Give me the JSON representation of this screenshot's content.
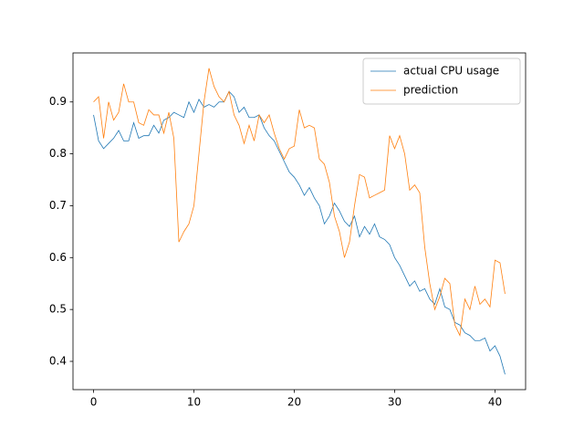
{
  "chart_data": {
    "type": "line",
    "x": [
      0,
      0.5,
      1,
      1.5,
      2,
      2.5,
      3,
      3.5,
      4,
      4.5,
      5,
      5.5,
      6,
      6.5,
      7,
      7.5,
      8,
      8.5,
      9,
      9.5,
      10,
      10.5,
      11,
      11.5,
      12,
      12.5,
      13,
      13.5,
      14,
      14.5,
      15,
      15.5,
      16,
      16.5,
      17,
      17.5,
      18,
      18.5,
      19,
      19.5,
      20,
      20.5,
      21,
      21.5,
      22,
      22.5,
      23,
      23.5,
      24,
      24.5,
      25,
      25.5,
      26,
      26.5,
      27,
      27.5,
      28,
      28.5,
      29,
      29.5,
      30,
      30.5,
      31,
      31.5,
      32,
      32.5,
      33,
      33.5,
      34,
      34.5,
      35,
      35.5,
      36,
      36.5,
      37,
      37.5,
      38,
      38.5,
      39,
      39.5,
      40,
      40.5,
      41
    ],
    "series": [
      {
        "name": "actual CPU usage",
        "color": "#1f77b4",
        "values": [
          0.875,
          0.825,
          0.81,
          0.82,
          0.83,
          0.845,
          0.825,
          0.825,
          0.86,
          0.83,
          0.835,
          0.835,
          0.855,
          0.84,
          0.865,
          0.87,
          0.88,
          0.875,
          0.87,
          0.9,
          0.88,
          0.905,
          0.89,
          0.895,
          0.89,
          0.9,
          0.9,
          0.92,
          0.91,
          0.88,
          0.89,
          0.87,
          0.87,
          0.875,
          0.85,
          0.835,
          0.825,
          0.805,
          0.785,
          0.765,
          0.755,
          0.74,
          0.72,
          0.735,
          0.715,
          0.7,
          0.665,
          0.68,
          0.705,
          0.69,
          0.67,
          0.66,
          0.68,
          0.64,
          0.66,
          0.645,
          0.665,
          0.64,
          0.635,
          0.625,
          0.6,
          0.585,
          0.565,
          0.545,
          0.555,
          0.535,
          0.54,
          0.52,
          0.51,
          0.54,
          0.505,
          0.5,
          0.475,
          0.47,
          0.455,
          0.45,
          0.44,
          0.44,
          0.445,
          0.42,
          0.43,
          0.41,
          0.375
        ]
      },
      {
        "name": "prediction",
        "color": "#ff7f0e",
        "values": [
          0.9,
          0.91,
          0.83,
          0.9,
          0.865,
          0.88,
          0.935,
          0.9,
          0.9,
          0.86,
          0.855,
          0.885,
          0.875,
          0.875,
          0.84,
          0.88,
          0.83,
          0.63,
          0.65,
          0.665,
          0.7,
          0.8,
          0.9,
          0.965,
          0.93,
          0.91,
          0.9,
          0.92,
          0.875,
          0.855,
          0.82,
          0.855,
          0.825,
          0.875,
          0.86,
          0.875,
          0.84,
          0.81,
          0.79,
          0.81,
          0.815,
          0.885,
          0.85,
          0.855,
          0.85,
          0.79,
          0.78,
          0.745,
          0.68,
          0.65,
          0.6,
          0.63,
          0.7,
          0.76,
          0.755,
          0.715,
          0.72,
          0.725,
          0.73,
          0.835,
          0.81,
          0.835,
          0.8,
          0.73,
          0.74,
          0.725,
          0.62,
          0.55,
          0.5,
          0.525,
          0.56,
          0.55,
          0.47,
          0.45,
          0.52,
          0.5,
          0.545,
          0.51,
          0.52,
          0.505,
          0.595,
          0.59,
          0.53
        ]
      }
    ],
    "xlim": [
      -2.05,
      43.05
    ],
    "xticks": [
      0,
      10,
      20,
      30,
      40
    ],
    "ylim": [
      0.3455,
      0.9945
    ],
    "yticks": [
      0.4,
      0.5,
      0.6,
      0.7,
      0.8,
      0.9
    ],
    "legend": "upper right"
  }
}
